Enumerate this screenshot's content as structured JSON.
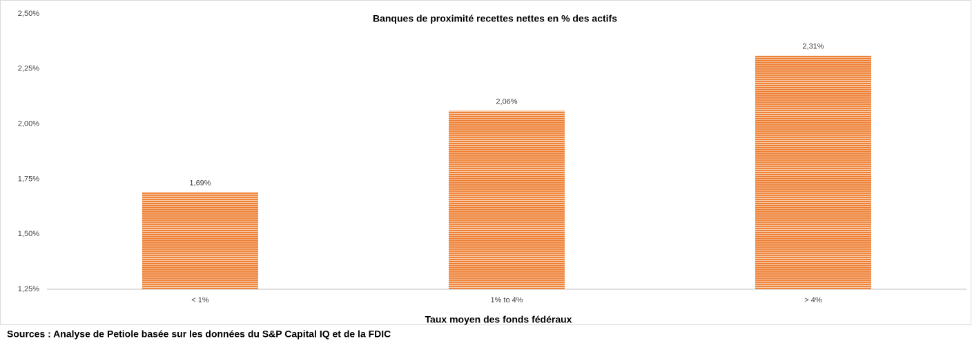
{
  "chart_data": {
    "type": "bar",
    "title": "Banques de proximité recettes nettes en % des actifs",
    "x_label": "Taux moyen des fonds fédéraux",
    "source": "Sources : Analyse de Petiole basée sur les données du S&P Capital IQ et de la FDIC",
    "categories": [
      "< 1%",
      "1% to 4%",
      "> 4%"
    ],
    "values": [
      1.69,
      2.06,
      2.31
    ],
    "value_labels": [
      "1,69%",
      "2,06%",
      "2,31%"
    ],
    "color": "#ed7d31",
    "ylim": [
      1.25,
      2.5
    ],
    "yticks": [
      {
        "value": 1.25,
        "label": "1,25%"
      },
      {
        "value": 1.5,
        "label": "1,50%"
      },
      {
        "value": 1.75,
        "label": "1,75%"
      },
      {
        "value": 2.0,
        "label": "2,00%"
      },
      {
        "value": 2.25,
        "label": "2,25%"
      },
      {
        "value": 2.5,
        "label": "2,50%"
      }
    ],
    "grid": false
  }
}
